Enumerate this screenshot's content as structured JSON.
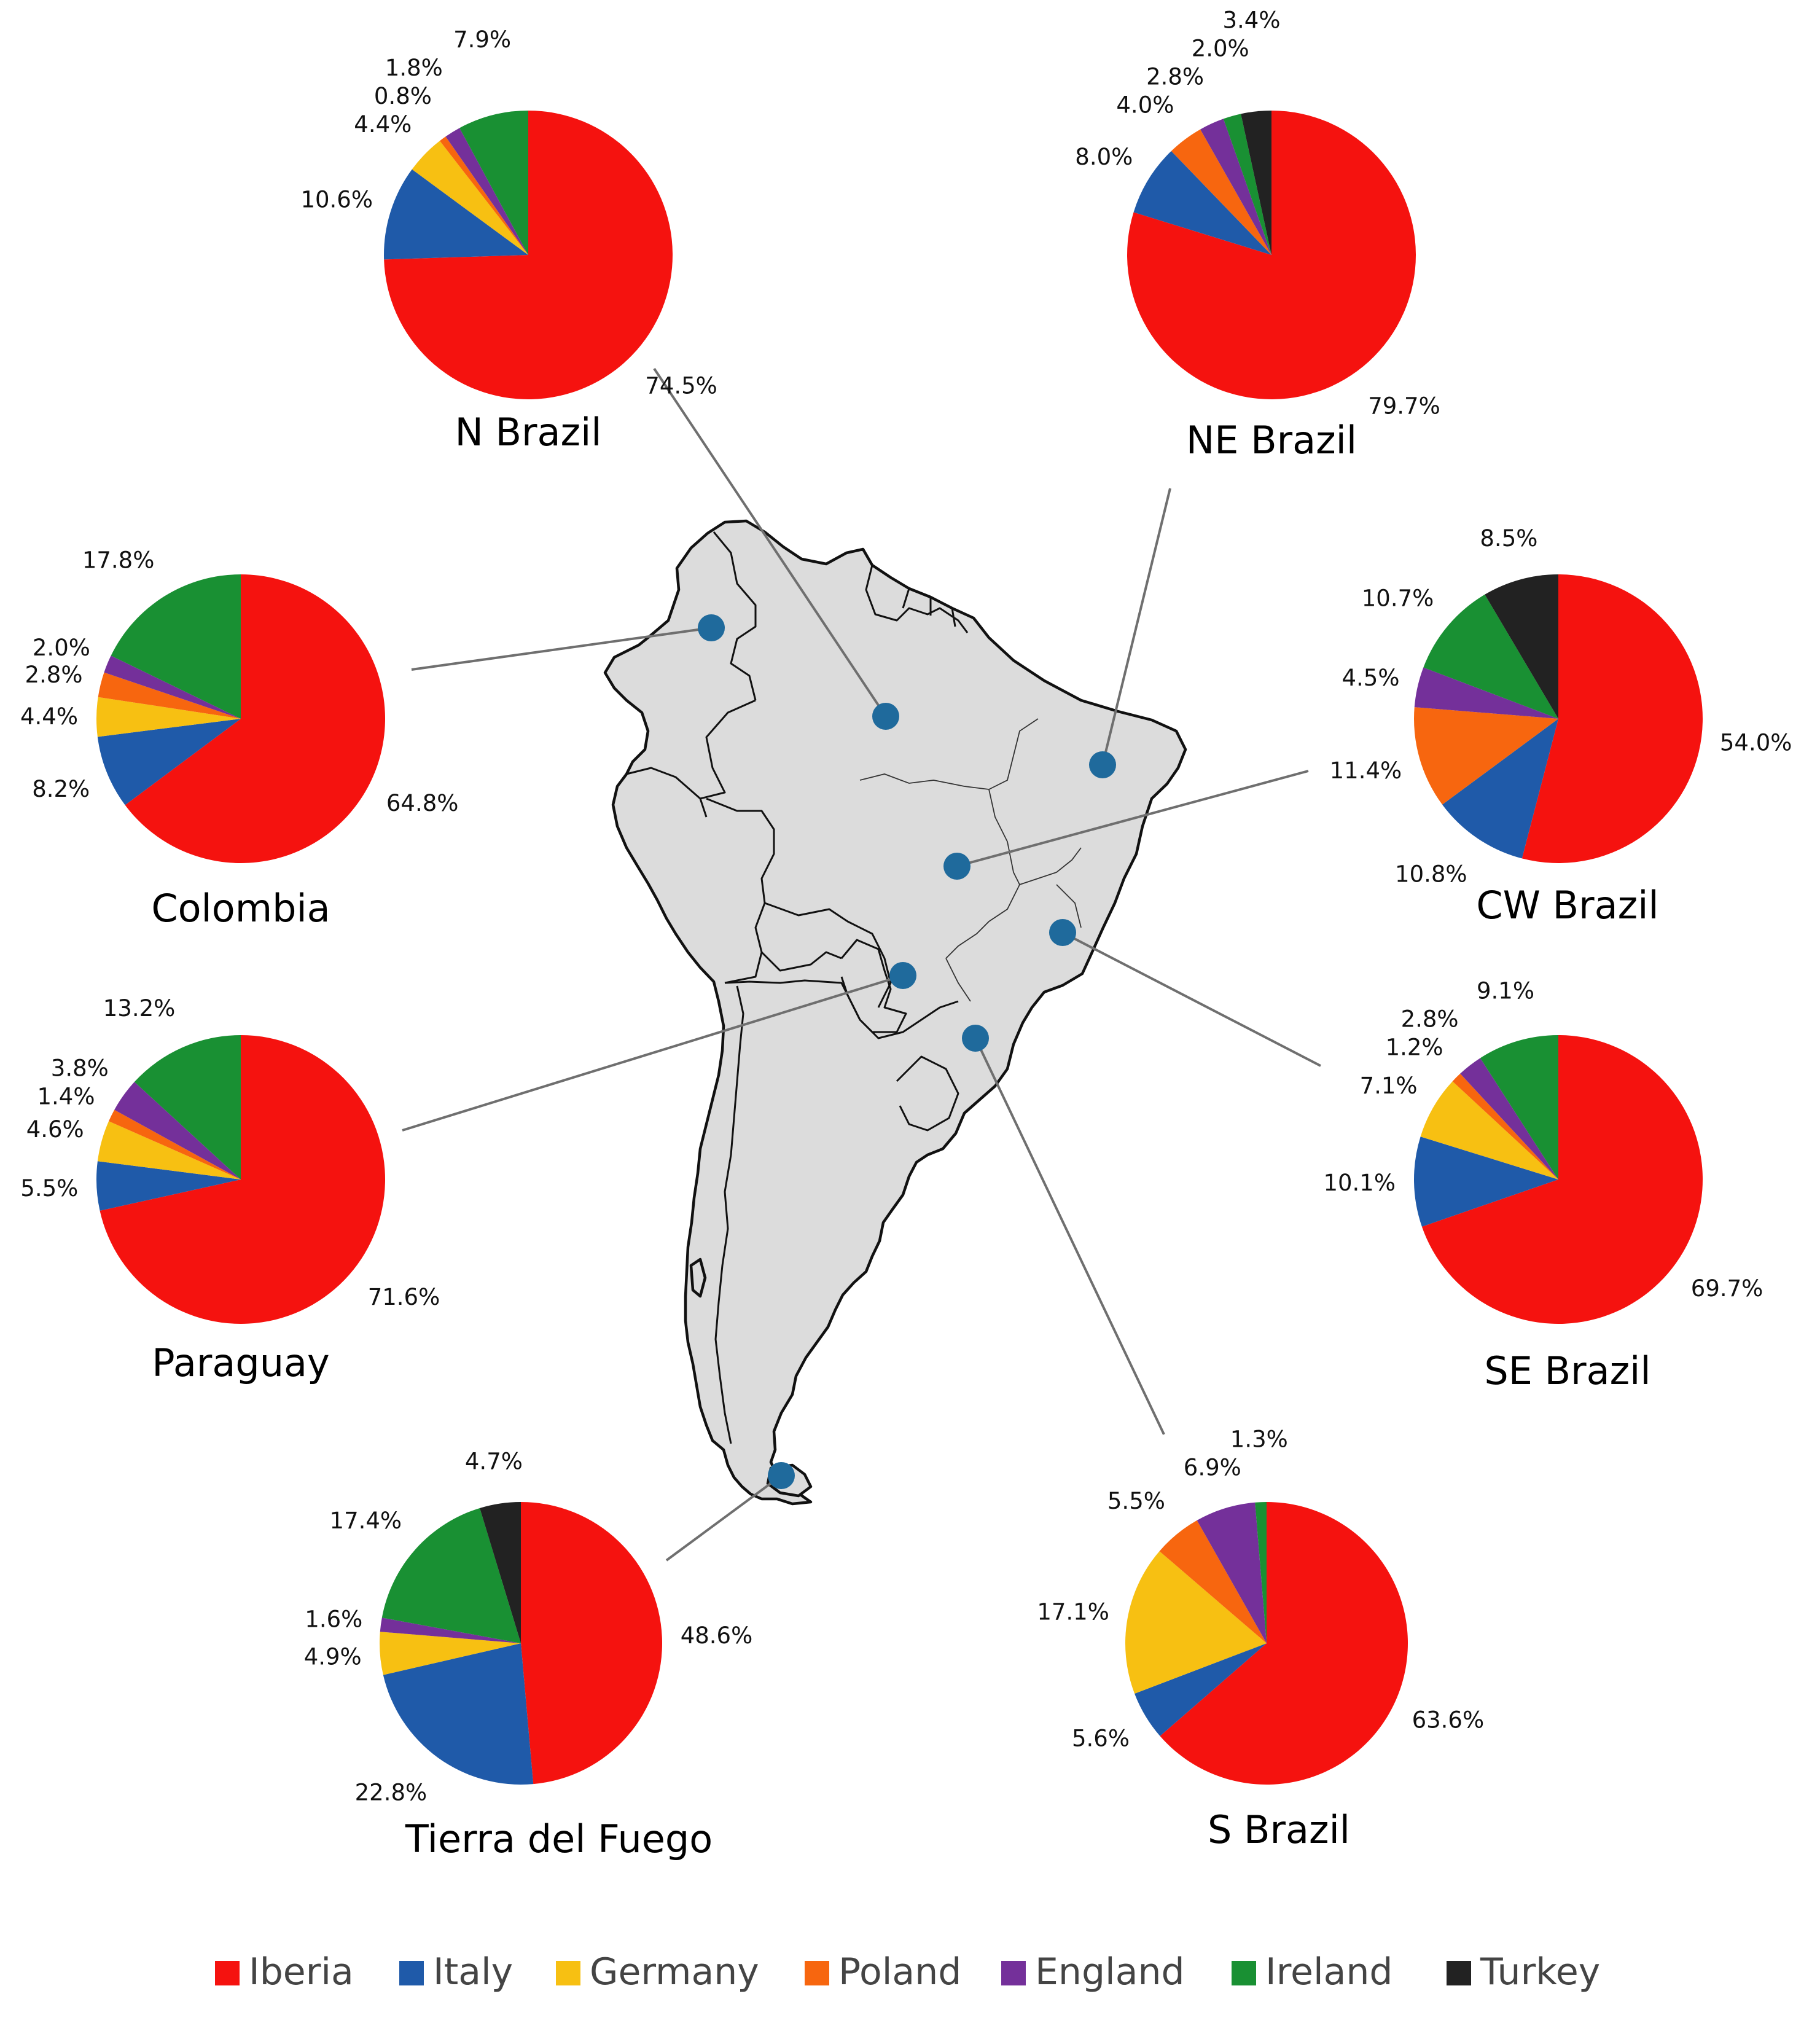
{
  "chart_data": {
    "type": "pie",
    "legend_position": "bottom",
    "categories": [
      "Iberia",
      "Italy",
      "Germany",
      "Poland",
      "England",
      "Ireland",
      "Turkey"
    ],
    "colors": {
      "Iberia": "#f5120f",
      "Italy": "#1f5aa9",
      "Germany": "#f7c012",
      "Poland": "#f7660f",
      "England": "#74309a",
      "Ireland": "#199033",
      "Turkey": "#222222"
    },
    "map_background": "#dcdcdc",
    "marker_color": "#1f6a9c",
    "charts": [
      {
        "title": "N Brazil",
        "slices": [
          {
            "category": "Iberia",
            "value": 74.5,
            "label": "74.5%"
          },
          {
            "category": "Italy",
            "value": 10.6,
            "label": "10.6%"
          },
          {
            "category": "Germany",
            "value": 4.4,
            "label": "4.4%"
          },
          {
            "category": "Poland",
            "value": 0.8,
            "label": "0.8%"
          },
          {
            "category": "England",
            "value": 1.8,
            "label": "1.8%"
          },
          {
            "category": "Ireland",
            "value": 7.9,
            "label": "7.9%"
          }
        ]
      },
      {
        "title": "NE Brazil",
        "slices": [
          {
            "category": "Iberia",
            "value": 79.7,
            "label": "79.7%"
          },
          {
            "category": "Italy",
            "value": 8.0,
            "label": "8.0%"
          },
          {
            "category": "Poland",
            "value": 4.0,
            "label": "4.0%"
          },
          {
            "category": "England",
            "value": 2.8,
            "label": "2.8%"
          },
          {
            "category": "Ireland",
            "value": 2.0,
            "label": "2.0%"
          },
          {
            "category": "Turkey",
            "value": 3.4,
            "label": "3.4%"
          }
        ]
      },
      {
        "title": "Colombia",
        "slices": [
          {
            "category": "Iberia",
            "value": 64.8,
            "label": "64.8%"
          },
          {
            "category": "Italy",
            "value": 8.2,
            "label": "8.2%"
          },
          {
            "category": "Germany",
            "value": 4.4,
            "label": "4.4%"
          },
          {
            "category": "Poland",
            "value": 2.8,
            "label": "2.8%"
          },
          {
            "category": "England",
            "value": 2.0,
            "label": "2.0%"
          },
          {
            "category": "Ireland",
            "value": 17.8,
            "label": "17.8%"
          }
        ]
      },
      {
        "title": "CW Brazil",
        "slices": [
          {
            "category": "Iberia",
            "value": 54.0,
            "label": "54.0%"
          },
          {
            "category": "Italy",
            "value": 10.8,
            "label": "10.8%"
          },
          {
            "category": "Poland",
            "value": 11.4,
            "label": "11.4%"
          },
          {
            "category": "England",
            "value": 4.5,
            "label": "4.5%"
          },
          {
            "category": "Ireland",
            "value": 10.7,
            "label": "10.7%"
          },
          {
            "category": "Turkey",
            "value": 8.5,
            "label": "8.5%"
          }
        ]
      },
      {
        "title": "Paraguay",
        "slices": [
          {
            "category": "Iberia",
            "value": 71.6,
            "label": "71.6%"
          },
          {
            "category": "Italy",
            "value": 5.5,
            "label": "5.5%"
          },
          {
            "category": "Germany",
            "value": 4.6,
            "label": "4.6%"
          },
          {
            "category": "Poland",
            "value": 1.4,
            "label": "1.4%"
          },
          {
            "category": "England",
            "value": 3.8,
            "label": "3.8%"
          },
          {
            "category": "Ireland",
            "value": 13.2,
            "label": "13.2%"
          }
        ]
      },
      {
        "title": "SE Brazil",
        "slices": [
          {
            "category": "Iberia",
            "value": 69.7,
            "label": "69.7%"
          },
          {
            "category": "Italy",
            "value": 10.1,
            "label": "10.1%"
          },
          {
            "category": "Germany",
            "value": 7.1,
            "label": "7.1%"
          },
          {
            "category": "Poland",
            "value": 1.2,
            "label": "1.2%"
          },
          {
            "category": "England",
            "value": 2.8,
            "label": "2.8%"
          },
          {
            "category": "Ireland",
            "value": 9.1,
            "label": "9.1%"
          }
        ]
      },
      {
        "title": "Tierra del Fuego",
        "slices": [
          {
            "category": "Iberia",
            "value": 48.6,
            "label": "48.6%"
          },
          {
            "category": "Italy",
            "value": 22.8,
            "label": "22.8%"
          },
          {
            "category": "Germany",
            "value": 4.9,
            "label": "4.9%"
          },
          {
            "category": "England",
            "value": 1.6,
            "label": "1.6%"
          },
          {
            "category": "Ireland",
            "value": 17.4,
            "label": "17.4%"
          },
          {
            "category": "Turkey",
            "value": 4.7,
            "label": "4.7%"
          }
        ]
      },
      {
        "title": "S Brazil",
        "slices": [
          {
            "category": "Iberia",
            "value": 63.6,
            "label": "63.6%"
          },
          {
            "category": "Italy",
            "value": 5.6,
            "label": "5.6%"
          },
          {
            "category": "Germany",
            "value": 17.1,
            "label": "17.1%"
          },
          {
            "category": "Poland",
            "value": 5.5,
            "label": "5.5%"
          },
          {
            "category": "England",
            "value": 6.9,
            "label": "6.9%"
          },
          {
            "category": "Ireland",
            "value": 1.3,
            "label": "1.3%"
          }
        ]
      }
    ]
  }
}
